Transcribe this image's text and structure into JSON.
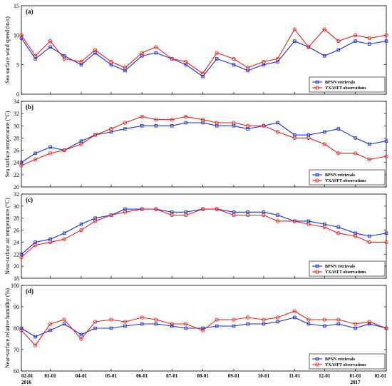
{
  "chart_data": [
    {
      "type": "line",
      "panel_label": "(a)",
      "ylabel": "Sea surface wind speed (m/s)",
      "ylim": [
        0,
        15
      ],
      "yticks": [
        0,
        5,
        10,
        15
      ],
      "x_start": "2016-02-01",
      "x_end": "2017-02-01",
      "legend_placement": "bottom-right",
      "series": [
        {
          "name": "BPNN retrievals",
          "color": "#1f2fd6",
          "marker": "square",
          "x": [
            "2016-02-01",
            "2016-02-15",
            "2016-03-01",
            "2016-03-15",
            "2016-04-01",
            "2016-04-15",
            "2016-05-01",
            "2016-05-15",
            "2016-06-01",
            "2016-06-15",
            "2016-07-01",
            "2016-07-15",
            "2016-08-01",
            "2016-08-15",
            "2016-09-01",
            "2016-09-15",
            "2016-10-01",
            "2016-10-15",
            "2016-11-01",
            "2016-11-15",
            "2016-12-01",
            "2016-12-15",
            "2017-01-01",
            "2017-01-15",
            "2017-02-01"
          ],
          "values": [
            9.5,
            6.0,
            8.0,
            6.5,
            5.0,
            7.0,
            5.0,
            4.0,
            6.5,
            7.0,
            6.0,
            5.0,
            3.0,
            6.0,
            5.0,
            4.0,
            5.0,
            5.5,
            9.0,
            8.0,
            6.5,
            7.5,
            9.0,
            8.5,
            9.0
          ]
        },
        {
          "name": "YXASFT observations",
          "color": "#e8221f",
          "marker": "circle",
          "x": [
            "2016-02-01",
            "2016-02-15",
            "2016-03-01",
            "2016-03-15",
            "2016-04-01",
            "2016-04-15",
            "2016-05-01",
            "2016-05-15",
            "2016-06-01",
            "2016-06-15",
            "2016-07-01",
            "2016-07-15",
            "2016-08-01",
            "2016-08-15",
            "2016-09-01",
            "2016-09-15",
            "2016-10-01",
            "2016-10-15",
            "2016-11-01",
            "2016-11-15",
            "2016-12-01",
            "2016-12-15",
            "2017-01-01",
            "2017-01-15",
            "2017-02-01"
          ],
          "values": [
            10.0,
            6.5,
            9.0,
            6.0,
            5.5,
            7.5,
            5.5,
            4.5,
            7.0,
            8.0,
            6.0,
            5.5,
            3.5,
            7.0,
            6.0,
            4.5,
            5.5,
            6.0,
            11.0,
            8.0,
            11.0,
            9.0,
            10.0,
            9.5,
            10.0
          ]
        }
      ]
    },
    {
      "type": "line",
      "panel_label": "(b)",
      "ylabel": "Sea surface temperature (°C)",
      "ylim": [
        20,
        34
      ],
      "yticks": [
        20,
        22,
        24,
        26,
        28,
        30,
        32,
        34
      ],
      "x_start": "2016-02-01",
      "x_end": "2017-02-01",
      "legend_placement": "bottom-right",
      "series": [
        {
          "name": "BPNN retrievals",
          "color": "#1f2fd6",
          "marker": "square",
          "x": [
            "2016-02-01",
            "2016-02-15",
            "2016-03-01",
            "2016-03-15",
            "2016-04-01",
            "2016-04-15",
            "2016-05-01",
            "2016-05-15",
            "2016-06-01",
            "2016-06-15",
            "2016-07-01",
            "2016-07-15",
            "2016-08-01",
            "2016-08-15",
            "2016-09-01",
            "2016-09-15",
            "2016-10-01",
            "2016-10-15",
            "2016-11-01",
            "2016-11-15",
            "2016-12-01",
            "2016-12-15",
            "2017-01-01",
            "2017-01-15",
            "2017-02-01"
          ],
          "values": [
            24.0,
            25.5,
            26.5,
            26.0,
            27.5,
            28.5,
            29.0,
            29.5,
            30.0,
            30.0,
            30.0,
            30.5,
            30.5,
            30.0,
            30.0,
            29.5,
            30.0,
            30.5,
            28.5,
            28.5,
            29.0,
            29.5,
            28.0,
            27.0,
            27.5
          ]
        },
        {
          "name": "YXASFT observations",
          "color": "#e8221f",
          "marker": "circle",
          "x": [
            "2016-02-01",
            "2016-02-15",
            "2016-03-01",
            "2016-03-15",
            "2016-04-01",
            "2016-04-15",
            "2016-05-01",
            "2016-05-15",
            "2016-06-01",
            "2016-06-15",
            "2016-07-01",
            "2016-07-15",
            "2016-08-01",
            "2016-08-15",
            "2016-09-01",
            "2016-09-15",
            "2016-10-01",
            "2016-10-15",
            "2016-11-01",
            "2016-11-15",
            "2016-12-01",
            "2016-12-15",
            "2017-01-01",
            "2017-01-15",
            "2017-02-01"
          ],
          "values": [
            23.5,
            24.5,
            25.5,
            26.0,
            27.0,
            28.5,
            29.5,
            30.5,
            31.5,
            31.0,
            31.0,
            31.5,
            31.0,
            30.5,
            30.5,
            30.0,
            30.0,
            29.0,
            28.0,
            28.0,
            27.0,
            25.5,
            25.5,
            24.5,
            25.0
          ]
        }
      ]
    },
    {
      "type": "line",
      "panel_label": "(c)",
      "ylabel": "Near-surface air temperature (°C)",
      "ylim": [
        18,
        32
      ],
      "yticks": [
        18,
        20,
        22,
        24,
        26,
        28,
        30,
        32
      ],
      "x_start": "2016-02-01",
      "x_end": "2017-02-01",
      "legend_placement": "bottom-right",
      "series": [
        {
          "name": "BPNN retrievals",
          "color": "#1f2fd6",
          "marker": "square",
          "x": [
            "2016-02-01",
            "2016-02-15",
            "2016-03-01",
            "2016-03-15",
            "2016-04-01",
            "2016-04-15",
            "2016-05-01",
            "2016-05-15",
            "2016-06-01",
            "2016-06-15",
            "2016-07-01",
            "2016-07-15",
            "2016-08-01",
            "2016-08-15",
            "2016-09-01",
            "2016-09-15",
            "2016-10-01",
            "2016-10-15",
            "2016-11-01",
            "2016-11-15",
            "2016-12-01",
            "2016-12-15",
            "2017-01-01",
            "2017-01-15",
            "2017-02-01"
          ],
          "values": [
            22.0,
            24.0,
            24.5,
            25.5,
            27.0,
            28.0,
            28.5,
            29.5,
            29.5,
            29.5,
            29.0,
            29.0,
            29.5,
            29.5,
            29.0,
            29.0,
            29.0,
            28.5,
            27.5,
            27.5,
            27.0,
            26.5,
            25.5,
            25.0,
            25.5
          ]
        },
        {
          "name": "YXASFT observations",
          "color": "#e8221f",
          "marker": "circle",
          "x": [
            "2016-02-01",
            "2016-02-15",
            "2016-03-01",
            "2016-03-15",
            "2016-04-01",
            "2016-04-15",
            "2016-05-01",
            "2016-05-15",
            "2016-06-01",
            "2016-06-15",
            "2016-07-01",
            "2016-07-15",
            "2016-08-01",
            "2016-08-15",
            "2016-09-01",
            "2016-09-15",
            "2016-10-01",
            "2016-10-15",
            "2016-11-01",
            "2016-11-15",
            "2016-12-01",
            "2016-12-15",
            "2017-01-01",
            "2017-01-15",
            "2017-02-01"
          ],
          "values": [
            21.5,
            23.5,
            24.0,
            24.5,
            26.0,
            27.5,
            28.5,
            29.0,
            29.5,
            29.5,
            28.5,
            28.5,
            29.5,
            29.5,
            28.5,
            28.5,
            28.5,
            27.5,
            27.5,
            27.0,
            26.5,
            25.5,
            25.0,
            24.0,
            24.0
          ]
        }
      ]
    },
    {
      "type": "line",
      "panel_label": "(d)",
      "ylabel": "Near-surface relative humidity (%)",
      "ylim": [
        60,
        100
      ],
      "yticks": [
        60,
        70,
        80,
        90,
        100
      ],
      "x_start": "2016-02-01",
      "x_end": "2017-02-01",
      "xtick_labels": [
        "02-01",
        "03-01",
        "04-01",
        "05-01",
        "06-01",
        "07-01",
        "08-01",
        "09-01",
        "10-01",
        "11-01",
        "12-01",
        "01-01",
        "02-01"
      ],
      "xtick_dates": [
        "2016-02-01",
        "2016-03-01",
        "2016-04-01",
        "2016-05-01",
        "2016-06-01",
        "2016-07-01",
        "2016-08-01",
        "2016-09-01",
        "2016-10-01",
        "2016-11-01",
        "2016-12-01",
        "2017-01-01",
        "2017-02-01"
      ],
      "year_labels": [
        {
          "text": "2016",
          "date": "2016-02-01"
        },
        {
          "text": "2017",
          "date": "2017-01-01"
        }
      ],
      "legend_placement": "bottom-right",
      "series": [
        {
          "name": "BPNN retrievals",
          "color": "#1f2fd6",
          "marker": "square",
          "x": [
            "2016-02-01",
            "2016-02-15",
            "2016-03-01",
            "2016-03-15",
            "2016-04-01",
            "2016-04-15",
            "2016-05-01",
            "2016-05-15",
            "2016-06-01",
            "2016-06-15",
            "2016-07-01",
            "2016-07-15",
            "2016-08-01",
            "2016-08-15",
            "2016-09-01",
            "2016-09-15",
            "2016-10-01",
            "2016-10-15",
            "2016-11-01",
            "2016-11-15",
            "2016-12-01",
            "2016-12-15",
            "2017-01-01",
            "2017-01-15",
            "2017-02-01"
          ],
          "values": [
            80,
            76,
            79,
            82,
            77,
            80,
            80,
            81,
            82,
            82,
            81,
            80,
            80,
            81,
            81,
            82,
            82,
            83,
            85,
            82,
            81,
            82,
            80,
            82,
            80
          ]
        },
        {
          "name": "YXASFT observations",
          "color": "#e8221f",
          "marker": "circle",
          "x": [
            "2016-02-01",
            "2016-02-15",
            "2016-03-01",
            "2016-03-15",
            "2016-04-01",
            "2016-04-15",
            "2016-05-01",
            "2016-05-15",
            "2016-06-01",
            "2016-06-15",
            "2016-07-01",
            "2016-07-15",
            "2016-08-01",
            "2016-08-15",
            "2016-09-01",
            "2016-09-15",
            "2016-10-01",
            "2016-10-15",
            "2016-11-01",
            "2016-11-15",
            "2016-12-01",
            "2016-12-15",
            "2017-01-01",
            "2017-01-15",
            "2017-02-01"
          ],
          "values": [
            79,
            72,
            82,
            84,
            75,
            83,
            84,
            83,
            85,
            84,
            82,
            82,
            79,
            84,
            84,
            85,
            84,
            85,
            88,
            84,
            84,
            84,
            82,
            83,
            80
          ]
        }
      ]
    }
  ]
}
